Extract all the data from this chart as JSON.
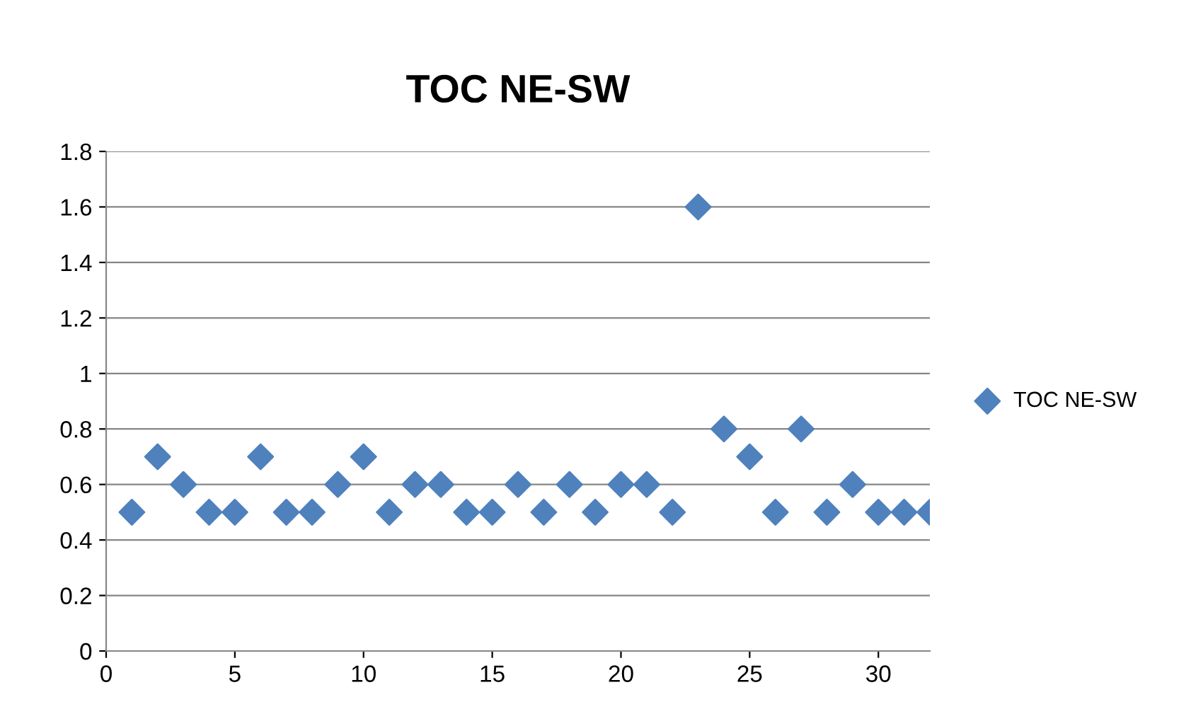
{
  "chart_data": {
    "type": "scatter",
    "title": "TOC NE-SW",
    "x": [
      1,
      2,
      3,
      4,
      5,
      6,
      7,
      8,
      9,
      10,
      11,
      12,
      13,
      14,
      15,
      16,
      17,
      18,
      19,
      20,
      21,
      22,
      23,
      24,
      25,
      26,
      27,
      28,
      29,
      30,
      31,
      32
    ],
    "series": [
      {
        "name": "TOC NE-SW",
        "color": "#4f81bd",
        "values": [
          0.5,
          0.7,
          0.6,
          0.5,
          0.5,
          0.7,
          0.5,
          0.5,
          0.6,
          0.7,
          0.5,
          0.6,
          0.6,
          0.5,
          0.5,
          0.6,
          0.5,
          0.6,
          0.5,
          0.6,
          0.6,
          0.5,
          1.6,
          0.8,
          0.7,
          0.5,
          0.8,
          0.5,
          0.6,
          0.5,
          0.5,
          0.5
        ]
      }
    ],
    "xlim": [
      0,
      32
    ],
    "xticks": [
      0,
      5,
      10,
      15,
      20,
      25,
      30
    ],
    "ylim": [
      0,
      1.8
    ],
    "yticks": [
      0,
      0.2,
      0.4,
      0.6,
      0.8,
      1,
      1.2,
      1.4,
      1.6,
      1.8
    ],
    "grid": "y",
    "legend": "right",
    "marker": "diamond"
  }
}
